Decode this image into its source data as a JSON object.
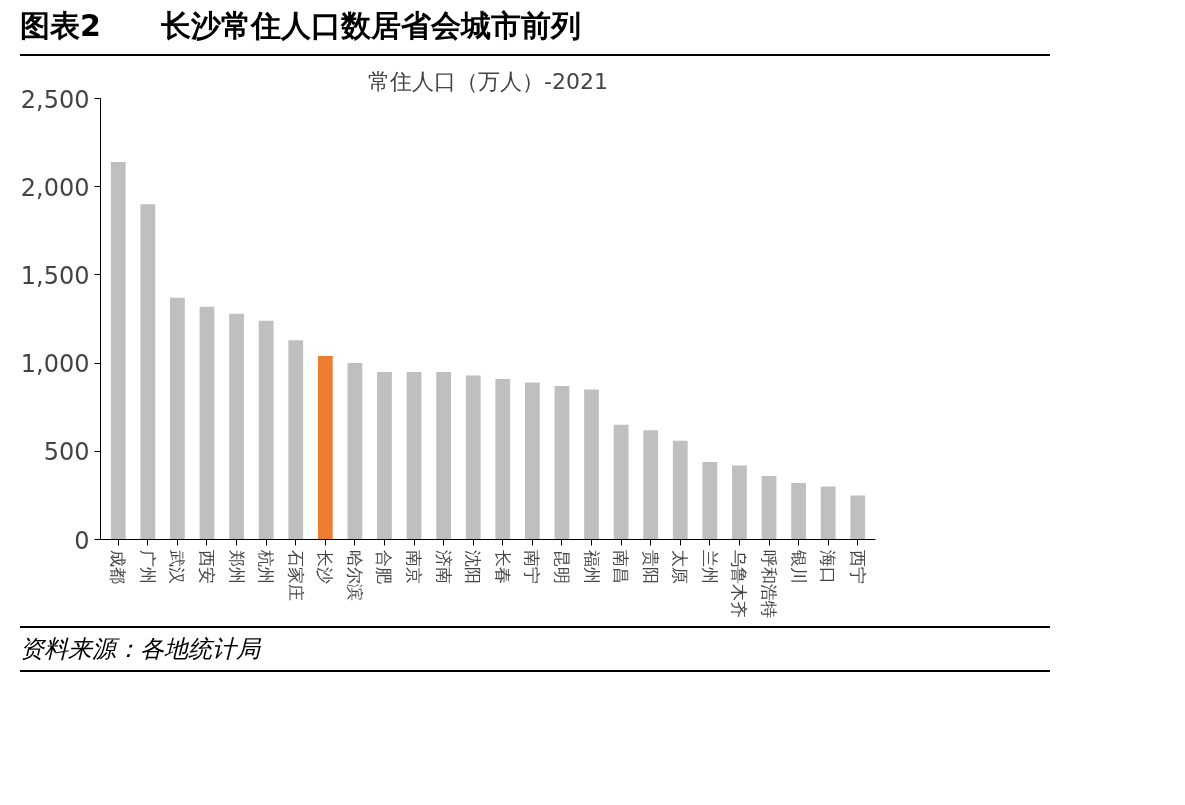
{
  "chart_data": {
    "type": "bar",
    "title": "常住人口（万人）-2021",
    "annotations": [
      "图表2　　长沙常住人口数居省会城市前列",
      "资料来源：各地统计局"
    ],
    "categories": [
      "成都",
      "广州",
      "武汉",
      "西安",
      "郑州",
      "杭州",
      "石家庄",
      "长沙",
      "哈尔滨",
      "合肥",
      "南京",
      "济南",
      "沈阳",
      "长春",
      "南宁",
      "昆明",
      "福州",
      "南昌",
      "贵阳",
      "太原",
      "兰州",
      "乌鲁木齐",
      "呼和浩特",
      "银川",
      "海口",
      "西宁"
    ],
    "values": [
      2140,
      1900,
      1370,
      1320,
      1280,
      1240,
      1130,
      1040,
      1000,
      950,
      950,
      950,
      930,
      910,
      890,
      870,
      850,
      650,
      620,
      560,
      440,
      420,
      360,
      320,
      300,
      250
    ],
    "colors": [
      "#bfbfbf",
      "#bfbfbf",
      "#bfbfbf",
      "#bfbfbf",
      "#bfbfbf",
      "#bfbfbf",
      "#bfbfbf",
      "#ed7d31",
      "#bfbfbf",
      "#bfbfbf",
      "#bfbfbf",
      "#bfbfbf",
      "#bfbfbf",
      "#bfbfbf",
      "#bfbfbf",
      "#bfbfbf",
      "#bfbfbf",
      "#bfbfbf",
      "#bfbfbf",
      "#bfbfbf",
      "#bfbfbf",
      "#bfbfbf",
      "#bfbfbf",
      "#bfbfbf",
      "#bfbfbf",
      "#bfbfbf"
    ],
    "ylim": [
      0,
      2500
    ],
    "yticks": [
      0,
      {
        "value": 500,
        "label": "500"
      },
      {
        "value": 1000,
        "label": "1,000"
      },
      {
        "value": 1500,
        "label": "1,500"
      },
      {
        "value": 2000,
        "label": "2,000"
      },
      {
        "value": 2500,
        "label": "2,500"
      }
    ],
    "grid": false
  }
}
